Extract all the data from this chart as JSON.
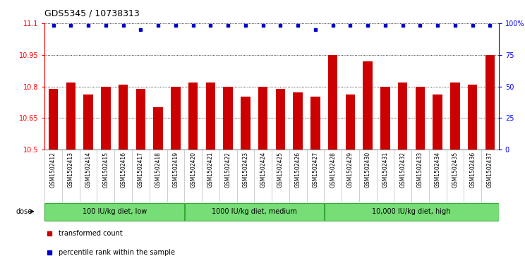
{
  "title": "GDS5345 / 10738313",
  "categories": [
    "GSM1502412",
    "GSM1502413",
    "GSM1502414",
    "GSM1502415",
    "GSM1502416",
    "GSM1502417",
    "GSM1502418",
    "GSM1502419",
    "GSM1502420",
    "GSM1502421",
    "GSM1502422",
    "GSM1502423",
    "GSM1502424",
    "GSM1502425",
    "GSM1502426",
    "GSM1502427",
    "GSM1502428",
    "GSM1502429",
    "GSM1502430",
    "GSM1502431",
    "GSM1502432",
    "GSM1502433",
    "GSM1502434",
    "GSM1502435",
    "GSM1502436",
    "GSM1502437"
  ],
  "bar_values": [
    10.79,
    10.82,
    10.76,
    10.8,
    10.81,
    10.79,
    10.7,
    10.8,
    10.82,
    10.82,
    10.8,
    10.75,
    10.8,
    10.79,
    10.77,
    10.75,
    10.95,
    10.76,
    10.92,
    10.8,
    10.82,
    10.8,
    10.76,
    10.82,
    10.81,
    10.95
  ],
  "percentile_values": [
    98,
    98,
    98,
    98,
    98,
    95,
    98,
    98,
    98,
    98,
    98,
    98,
    98,
    98,
    98,
    95,
    98,
    98,
    98,
    98,
    98,
    98,
    98,
    98,
    98,
    98
  ],
  "bar_color": "#cc0000",
  "dot_color": "#0000cc",
  "ylim_left": [
    10.5,
    11.1
  ],
  "ylim_right": [
    0,
    100
  ],
  "yticks_left": [
    10.5,
    10.65,
    10.8,
    10.95,
    11.1
  ],
  "ytick_labels_left": [
    "10.5",
    "10.65",
    "10.8",
    "10.95",
    "11.1"
  ],
  "yticks_right": [
    0,
    25,
    50,
    75,
    100
  ],
  "ytick_labels_right": [
    "0",
    "25",
    "50",
    "75",
    "100%"
  ],
  "groups": [
    {
      "label": "100 IU/kg diet, low",
      "start": 0,
      "end": 8
    },
    {
      "label": "1000 IU/kg diet, medium",
      "start": 8,
      "end": 16
    },
    {
      "label": "10,000 IU/kg diet, high",
      "start": 16,
      "end": 26
    }
  ],
  "group_color": "#77dd77",
  "group_border_color": "#33aa33",
  "dose_label": "dose",
  "legend_items": [
    {
      "color": "#cc0000",
      "label": "transformed count"
    },
    {
      "color": "#0000cc",
      "label": "percentile rank within the sample"
    }
  ],
  "bar_width": 0.55,
  "tick_bg_color": "#d8d8d8",
  "plot_bg_color": "#ffffff"
}
